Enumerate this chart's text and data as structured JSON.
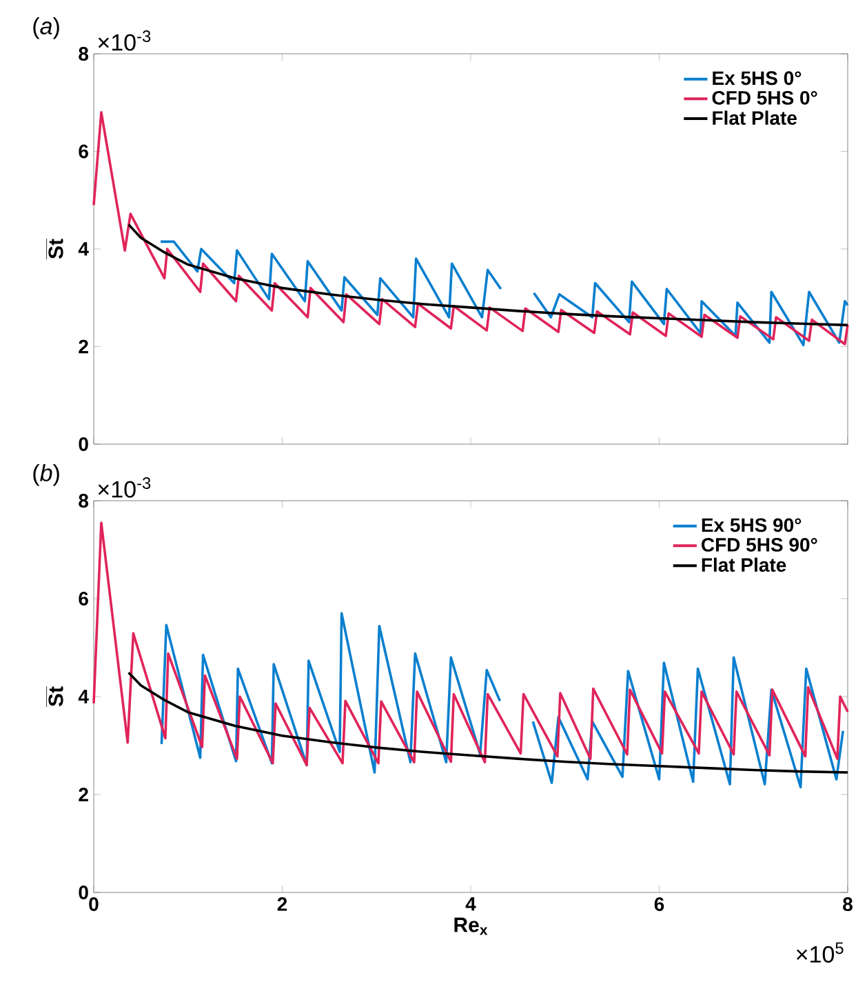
{
  "chart_data": [
    {
      "type": "line",
      "ylabel": "\\overline{\\textbf{St}}",
      "xlim": [
        0,
        8
      ],
      "ylim": [
        0,
        8
      ],
      "xticks": [
        0,
        2,
        4,
        6,
        8
      ],
      "yticks": [
        0,
        2,
        4,
        6,
        8
      ],
      "tick_labels": "y",
      "legend": "top right",
      "line_style": "solid",
      "grid": false,
      "annotations": [
        "(*a*)",
        "×10$^{-3}$"
      ],
      "series": [
        {
          "name": "Ex 5HS 0°",
          "color": "#0a7fcf",
          "x": [
            0.71,
            0.85,
            1.1,
            1.14,
            1.49,
            1.52,
            1.86,
            1.89,
            2.24,
            2.27,
            2.63,
            2.66,
            3.01,
            3.04,
            3.39,
            3.42,
            3.77,
            3.8,
            4.12,
            4.18,
            4.32,
            4.5,
            4.67,
            4.85,
            4.94,
            5.29,
            5.32,
            5.68,
            5.71,
            6.05,
            6.08,
            6.44,
            6.45,
            6.81,
            6.83,
            7.17,
            7.19,
            7.53,
            7.59,
            7.91,
            7.97,
            8.0
          ],
          "values": [
            4.15,
            4.15,
            3.54,
            4.0,
            3.3,
            3.97,
            2.97,
            3.9,
            2.93,
            3.75,
            2.74,
            3.42,
            2.65,
            3.4,
            2.6,
            3.8,
            2.6,
            3.7,
            2.6,
            3.57,
            3.18,
            null,
            3.1,
            2.6,
            3.07,
            2.6,
            3.3,
            2.5,
            3.33,
            2.46,
            3.18,
            2.27,
            2.93,
            2.22,
            2.9,
            2.08,
            3.12,
            2.03,
            3.12,
            2.08,
            2.93,
            2.85
          ]
        },
        {
          "name": "CFD 5HS 0°",
          "color": "#e0245a",
          "x": [
            0,
            0.08,
            0.33,
            0.39,
            0.75,
            0.78,
            1.13,
            1.16,
            1.51,
            1.54,
            1.89,
            1.92,
            2.27,
            2.3,
            2.65,
            2.68,
            3.03,
            3.06,
            3.41,
            3.44,
            3.79,
            3.82,
            4.17,
            4.2,
            4.55,
            4.58,
            4.93,
            4.96,
            5.31,
            5.34,
            5.69,
            5.72,
            6.07,
            6.1,
            6.45,
            6.48,
            6.83,
            6.86,
            7.21,
            7.24,
            7.59,
            7.62,
            7.97,
            8.0
          ],
          "values": [
            4.9,
            6.8,
            3.97,
            4.72,
            3.4,
            4.0,
            3.12,
            3.7,
            2.93,
            3.45,
            2.74,
            3.3,
            2.6,
            3.2,
            2.5,
            3.07,
            2.46,
            2.97,
            2.4,
            2.88,
            2.37,
            2.83,
            2.33,
            2.8,
            2.32,
            2.78,
            2.3,
            2.75,
            2.28,
            2.72,
            2.25,
            2.7,
            2.22,
            2.68,
            2.2,
            2.65,
            2.18,
            2.62,
            2.15,
            2.6,
            2.12,
            2.55,
            2.05,
            2.45
          ]
        },
        {
          "name": "Flat Plate",
          "color": "#000000",
          "x": [
            0.37,
            0.5,
            0.75,
            1,
            1.5,
            2,
            2.5,
            3,
            3.5,
            4,
            4.5,
            5,
            5.5,
            6,
            6.5,
            7,
            7.5,
            8
          ],
          "values": [
            4.5,
            4.23,
            3.93,
            3.68,
            3.4,
            3.2,
            3.07,
            2.96,
            2.87,
            2.8,
            2.73,
            2.67,
            2.62,
            2.58,
            2.54,
            2.5,
            2.47,
            2.44
          ]
        }
      ]
    },
    {
      "type": "line",
      "xlabel": "Re$_{x}$",
      "ylabel": "\\overline{\\textbf{St}}",
      "xlim": [
        0,
        8
      ],
      "ylim": [
        0,
        8
      ],
      "xticks": [
        0,
        2,
        4,
        6,
        8
      ],
      "yticks": [
        0,
        2,
        4,
        6,
        8
      ],
      "legend": "top right",
      "line_style": "solid",
      "grid": false,
      "annotations": [
        "(*b*)",
        "×10$^{-3}$",
        "×10$^{5}$"
      ],
      "series": [
        {
          "name": "Ex 5HS 90°",
          "color": "#0a7fcf",
          "x": [
            0.72,
            0.77,
            1.13,
            1.16,
            1.51,
            1.53,
            1.89,
            1.91,
            2.26,
            2.28,
            2.61,
            2.63,
            2.98,
            3.03,
            3.36,
            3.41,
            3.74,
            3.79,
            4.1,
            4.17,
            4.31,
            4.5,
            4.66,
            4.86,
            4.93,
            5.24,
            5.29,
            5.61,
            5.67,
            6.0,
            6.05,
            6.36,
            6.41,
            6.75,
            6.79,
            7.12,
            7.19,
            7.5,
            7.56,
            7.88,
            7.95
          ],
          "values": [
            3.03,
            5.46,
            2.75,
            4.85,
            2.68,
            4.57,
            2.64,
            4.66,
            2.6,
            4.73,
            2.87,
            5.7,
            2.45,
            5.44,
            2.66,
            4.88,
            2.66,
            4.8,
            2.82,
            4.54,
            3.91,
            null,
            3.49,
            2.24,
            3.58,
            2.31,
            3.49,
            2.36,
            4.52,
            2.31,
            4.69,
            2.26,
            4.57,
            2.21,
            4.8,
            2.21,
            4.14,
            2.15,
            4.57,
            2.31,
            3.3
          ]
        },
        {
          "name": "CFD 5HS 90°",
          "color": "#e0245a",
          "x": [
            0,
            0.08,
            0.36,
            0.42,
            0.76,
            0.79,
            1.15,
            1.18,
            1.52,
            1.55,
            1.9,
            1.93,
            2.26,
            2.29,
            2.64,
            2.67,
            3.02,
            3.05,
            3.4,
            3.43,
            3.79,
            3.82,
            4.15,
            4.18,
            4.53,
            4.56,
            4.92,
            4.95,
            5.27,
            5.3,
            5.66,
            5.69,
            6.03,
            6.06,
            6.42,
            6.45,
            6.79,
            6.82,
            7.17,
            7.2,
            7.55,
            7.58,
            7.89,
            7.92,
            8.0
          ],
          "values": [
            3.86,
            7.55,
            3.06,
            5.29,
            3.15,
            4.88,
            2.97,
            4.43,
            2.73,
            4.0,
            2.64,
            3.86,
            2.6,
            3.77,
            2.64,
            3.91,
            2.64,
            3.9,
            2.66,
            4.1,
            2.67,
            4.05,
            2.66,
            4.05,
            2.84,
            4.05,
            2.78,
            4.07,
            2.73,
            4.16,
            2.82,
            4.14,
            2.84,
            4.1,
            2.84,
            4.1,
            2.82,
            4.1,
            2.8,
            4.14,
            2.78,
            4.19,
            2.73,
            4.0,
            3.69
          ]
        },
        {
          "name": "Flat Plate",
          "color": "#000000",
          "x": [
            0.37,
            0.5,
            0.75,
            1,
            1.5,
            2,
            2.5,
            3,
            3.5,
            4,
            4.5,
            5,
            5.5,
            6,
            6.5,
            7,
            7.5,
            8
          ],
          "values": [
            4.49,
            4.23,
            3.93,
            3.68,
            3.4,
            3.2,
            3.07,
            2.96,
            2.87,
            2.8,
            2.73,
            2.67,
            2.62,
            2.58,
            2.54,
            2.5,
            2.47,
            2.45
          ]
        }
      ]
    }
  ]
}
